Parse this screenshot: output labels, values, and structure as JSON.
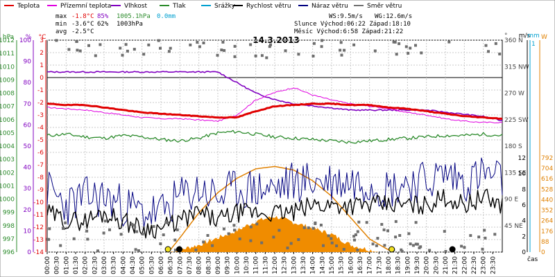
{
  "legend": [
    {
      "label": "Teplota",
      "color": "#e00000"
    },
    {
      "label": "Přízemní teplota",
      "color": "#e000e0"
    },
    {
      "label": "Vlhkost",
      "color": "#8000c0"
    },
    {
      "label": "Tlak",
      "color": "#2a8a2a"
    },
    {
      "label": "Srážky",
      "color": "#00a0d0"
    },
    {
      "label": "Rychlost větru",
      "color": "#000000"
    },
    {
      "label": "Náraz větru",
      "color": "#000080"
    },
    {
      "label": "Směr větru",
      "color": "#707070"
    }
  ],
  "stats": {
    "max_label": "max",
    "min_label": "min",
    "avg_label": "avg",
    "max_temp": "-1.8°C",
    "max_hum": "85%",
    "max_press": "1005.1hPa",
    "max_rain": "0.0mm",
    "min_temp": "-3.6°C",
    "min_hum": "62%",
    "min_press": "1003hPa",
    "avg_temp": "-2.5°C",
    "ws": "WS:9.5m/s",
    "wg": "WG:12.6m/s",
    "sun": "Slunce Východ:06:22  Západ:18:10",
    "moon": "Měsíc  Východ:6:58   Západ:21:22"
  },
  "chart_data": {
    "type": "line",
    "title": "14.3.2013",
    "xlabel": "čas",
    "x_ticks": [
      "00:00",
      "00:30",
      "01:00",
      "01:30",
      "02:00",
      "02:30",
      "03:00",
      "03:30",
      "04:00",
      "04:30",
      "05:00",
      "05:30",
      "06:00",
      "06:30",
      "07:00",
      "07:30",
      "08:00",
      "08:30",
      "09:00",
      "09:30",
      "10:00",
      "10:30",
      "11:00",
      "11:30",
      "12:00",
      "12:30",
      "13:00",
      "13:30",
      "14:00",
      "14:30",
      "15:00",
      "15:30",
      "16:00",
      "16:30",
      "17:00",
      "17:30",
      "18:00",
      "18:30",
      "19:00",
      "19:30",
      "20:00",
      "20:30",
      "21:00",
      "21:30",
      "22:00",
      "22:30",
      "23:00",
      "23:30"
    ],
    "axes": {
      "pressure": {
        "unit": "hPa",
        "ticks": [
          "1012",
          "1011",
          "1010",
          "1009",
          "1008",
          "1007",
          "1006",
          "1005",
          "1004",
          "1003",
          "1002",
          "1001",
          "1000",
          "999",
          "998",
          "997",
          "996"
        ],
        "range": [
          996,
          1012
        ]
      },
      "humidity": {
        "unit": "%",
        "ticks": [
          "100",
          "90",
          "80",
          "70",
          "60",
          "50",
          "40",
          "30",
          "20",
          "10",
          "0"
        ],
        "range": [
          0,
          100
        ]
      },
      "temperature": {
        "unit": "°C",
        "ticks": [
          "3",
          "2",
          "1",
          "0",
          "-1",
          "-2",
          "-3",
          "-4",
          "-5",
          "-6",
          "-7",
          "-8",
          "-9",
          "-10",
          "-11",
          "-12",
          "-13",
          "-14"
        ],
        "range": [
          -14,
          3
        ]
      },
      "direction": {
        "unit": "°",
        "ticks": [
          "360 N",
          "315 NW",
          "270 W",
          "225 SW",
          "180 S",
          "135 SE",
          "90 E",
          "45 NE"
        ],
        "range": [
          0,
          360
        ]
      },
      "wind": {
        "unit": "m/s",
        "ticks": [
          "12",
          "10",
          "8",
          "6",
          "4",
          "2",
          "0"
        ],
        "range": [
          0,
          12
        ]
      },
      "rain": {
        "unit": "mm",
        "ticks": [
          "1"
        ]
      },
      "solar": {
        "unit": "W",
        "ticks": [
          "792",
          "704",
          "616",
          "528",
          "440",
          "352",
          "264",
          "176",
          "88",
          "0"
        ],
        "range": [
          0,
          792
        ]
      }
    },
    "series": [
      {
        "name": "Teplota",
        "axis": "temperature",
        "x": [
          0,
          1,
          2,
          3,
          4,
          5,
          6,
          7,
          8,
          9,
          10,
          11,
          12,
          13,
          14,
          15,
          16,
          17,
          18,
          19,
          20,
          21,
          22,
          23,
          24
        ],
        "values": [
          -2.1,
          -2.2,
          -2.2,
          -2.4,
          -2.6,
          -2.8,
          -2.9,
          -3.0,
          -3.1,
          -3.2,
          -3.2,
          -2.7,
          -2.3,
          -2.2,
          -2.1,
          -2.1,
          -2.2,
          -2.2,
          -2.4,
          -2.5,
          -2.7,
          -2.9,
          -3.1,
          -3.2,
          -3.3
        ]
      },
      {
        "name": "Přízemní teplota",
        "axis": "temperature",
        "x": [
          0,
          1,
          2,
          3,
          4,
          5,
          6,
          7,
          8,
          9,
          10,
          11,
          12,
          13,
          14,
          15,
          16,
          17,
          18,
          19,
          20,
          21,
          22,
          23,
          24
        ],
        "values": [
          -2.4,
          -2.5,
          -2.6,
          -2.8,
          -3.0,
          -3.2,
          -3.3,
          -3.3,
          -3.4,
          -3.5,
          -3.0,
          -1.8,
          -1.2,
          -0.8,
          -1.4,
          -1.8,
          -2.1,
          -2.3,
          -2.5,
          -2.8,
          -3.0,
          -3.3,
          -3.5,
          -3.6,
          -3.6
        ]
      },
      {
        "name": "Vlhkost",
        "axis": "humidity",
        "x": [
          0,
          1,
          2,
          3,
          4,
          5,
          6,
          7,
          8,
          9,
          10,
          11,
          12,
          13,
          14,
          15,
          16,
          17,
          18,
          19,
          20,
          21,
          22,
          23,
          24
        ],
        "values": [
          85,
          85,
          85,
          85,
          85,
          85,
          85,
          85,
          85,
          85,
          80,
          75,
          72,
          70,
          69,
          68,
          67,
          67,
          67,
          67,
          67,
          66,
          65,
          64,
          62
        ]
      },
      {
        "name": "Tlak",
        "axis": "pressure",
        "x": [
          0,
          1,
          2,
          3,
          4,
          5,
          6,
          7,
          8,
          9,
          10,
          11,
          12,
          13,
          14,
          15,
          16,
          17,
          18,
          19,
          20,
          21,
          22,
          23,
          24
        ],
        "values": [
          1004.8,
          1004.9,
          1004.7,
          1004.6,
          1004.8,
          1004.7,
          1004.5,
          1004.4,
          1004.6,
          1005.0,
          1005.1,
          1004.9,
          1004.7,
          1004.6,
          1004.5,
          1004.4,
          1004.3,
          1004.4,
          1004.5,
          1004.6,
          1004.7,
          1004.8,
          1004.8,
          1004.9,
          1004.8
        ]
      },
      {
        "name": "Rychlost větru",
        "axis": "wind",
        "x": [
          0,
          1,
          2,
          3,
          4,
          5,
          6,
          7,
          8,
          9,
          10,
          11,
          12,
          13,
          14,
          15,
          16,
          17,
          18,
          19,
          20,
          21,
          22,
          23,
          24
        ],
        "values": [
          5,
          4,
          4,
          5,
          4,
          3,
          3,
          4,
          5,
          4,
          5,
          5,
          5,
          5,
          6,
          6,
          6,
          6,
          6,
          6,
          6,
          7,
          6,
          7,
          6
        ]
      },
      {
        "name": "Náraz větru",
        "axis": "wind",
        "x": [
          0,
          1,
          2,
          3,
          4,
          5,
          6,
          7,
          8,
          9,
          10,
          11,
          12,
          13,
          14,
          15,
          16,
          17,
          18,
          19,
          20,
          21,
          22,
          23,
          24
        ],
        "values": [
          8,
          6,
          7,
          7,
          6,
          5,
          5,
          7,
          8,
          7,
          8,
          8,
          8,
          9,
          9,
          9,
          9,
          9,
          8,
          9,
          9,
          10,
          9,
          10,
          9
        ]
      },
      {
        "name": "Solar",
        "axis": "solar",
        "x": [
          6.5,
          8,
          9,
          10,
          11,
          12,
          13,
          14,
          15,
          16,
          17,
          17.5
        ],
        "values": [
          0,
          60,
          120,
          180,
          260,
          300,
          250,
          200,
          150,
          60,
          20,
          0
        ]
      },
      {
        "name": "Theoretical solar",
        "axis": "solar",
        "x": [
          6.4,
          7,
          8,
          9,
          10,
          11,
          12,
          13,
          14,
          15,
          16,
          17,
          18.2
        ],
        "values": [
          0,
          120,
          330,
          500,
          620,
          700,
          720,
          690,
          600,
          470,
          290,
          110,
          0
        ]
      }
    ]
  }
}
